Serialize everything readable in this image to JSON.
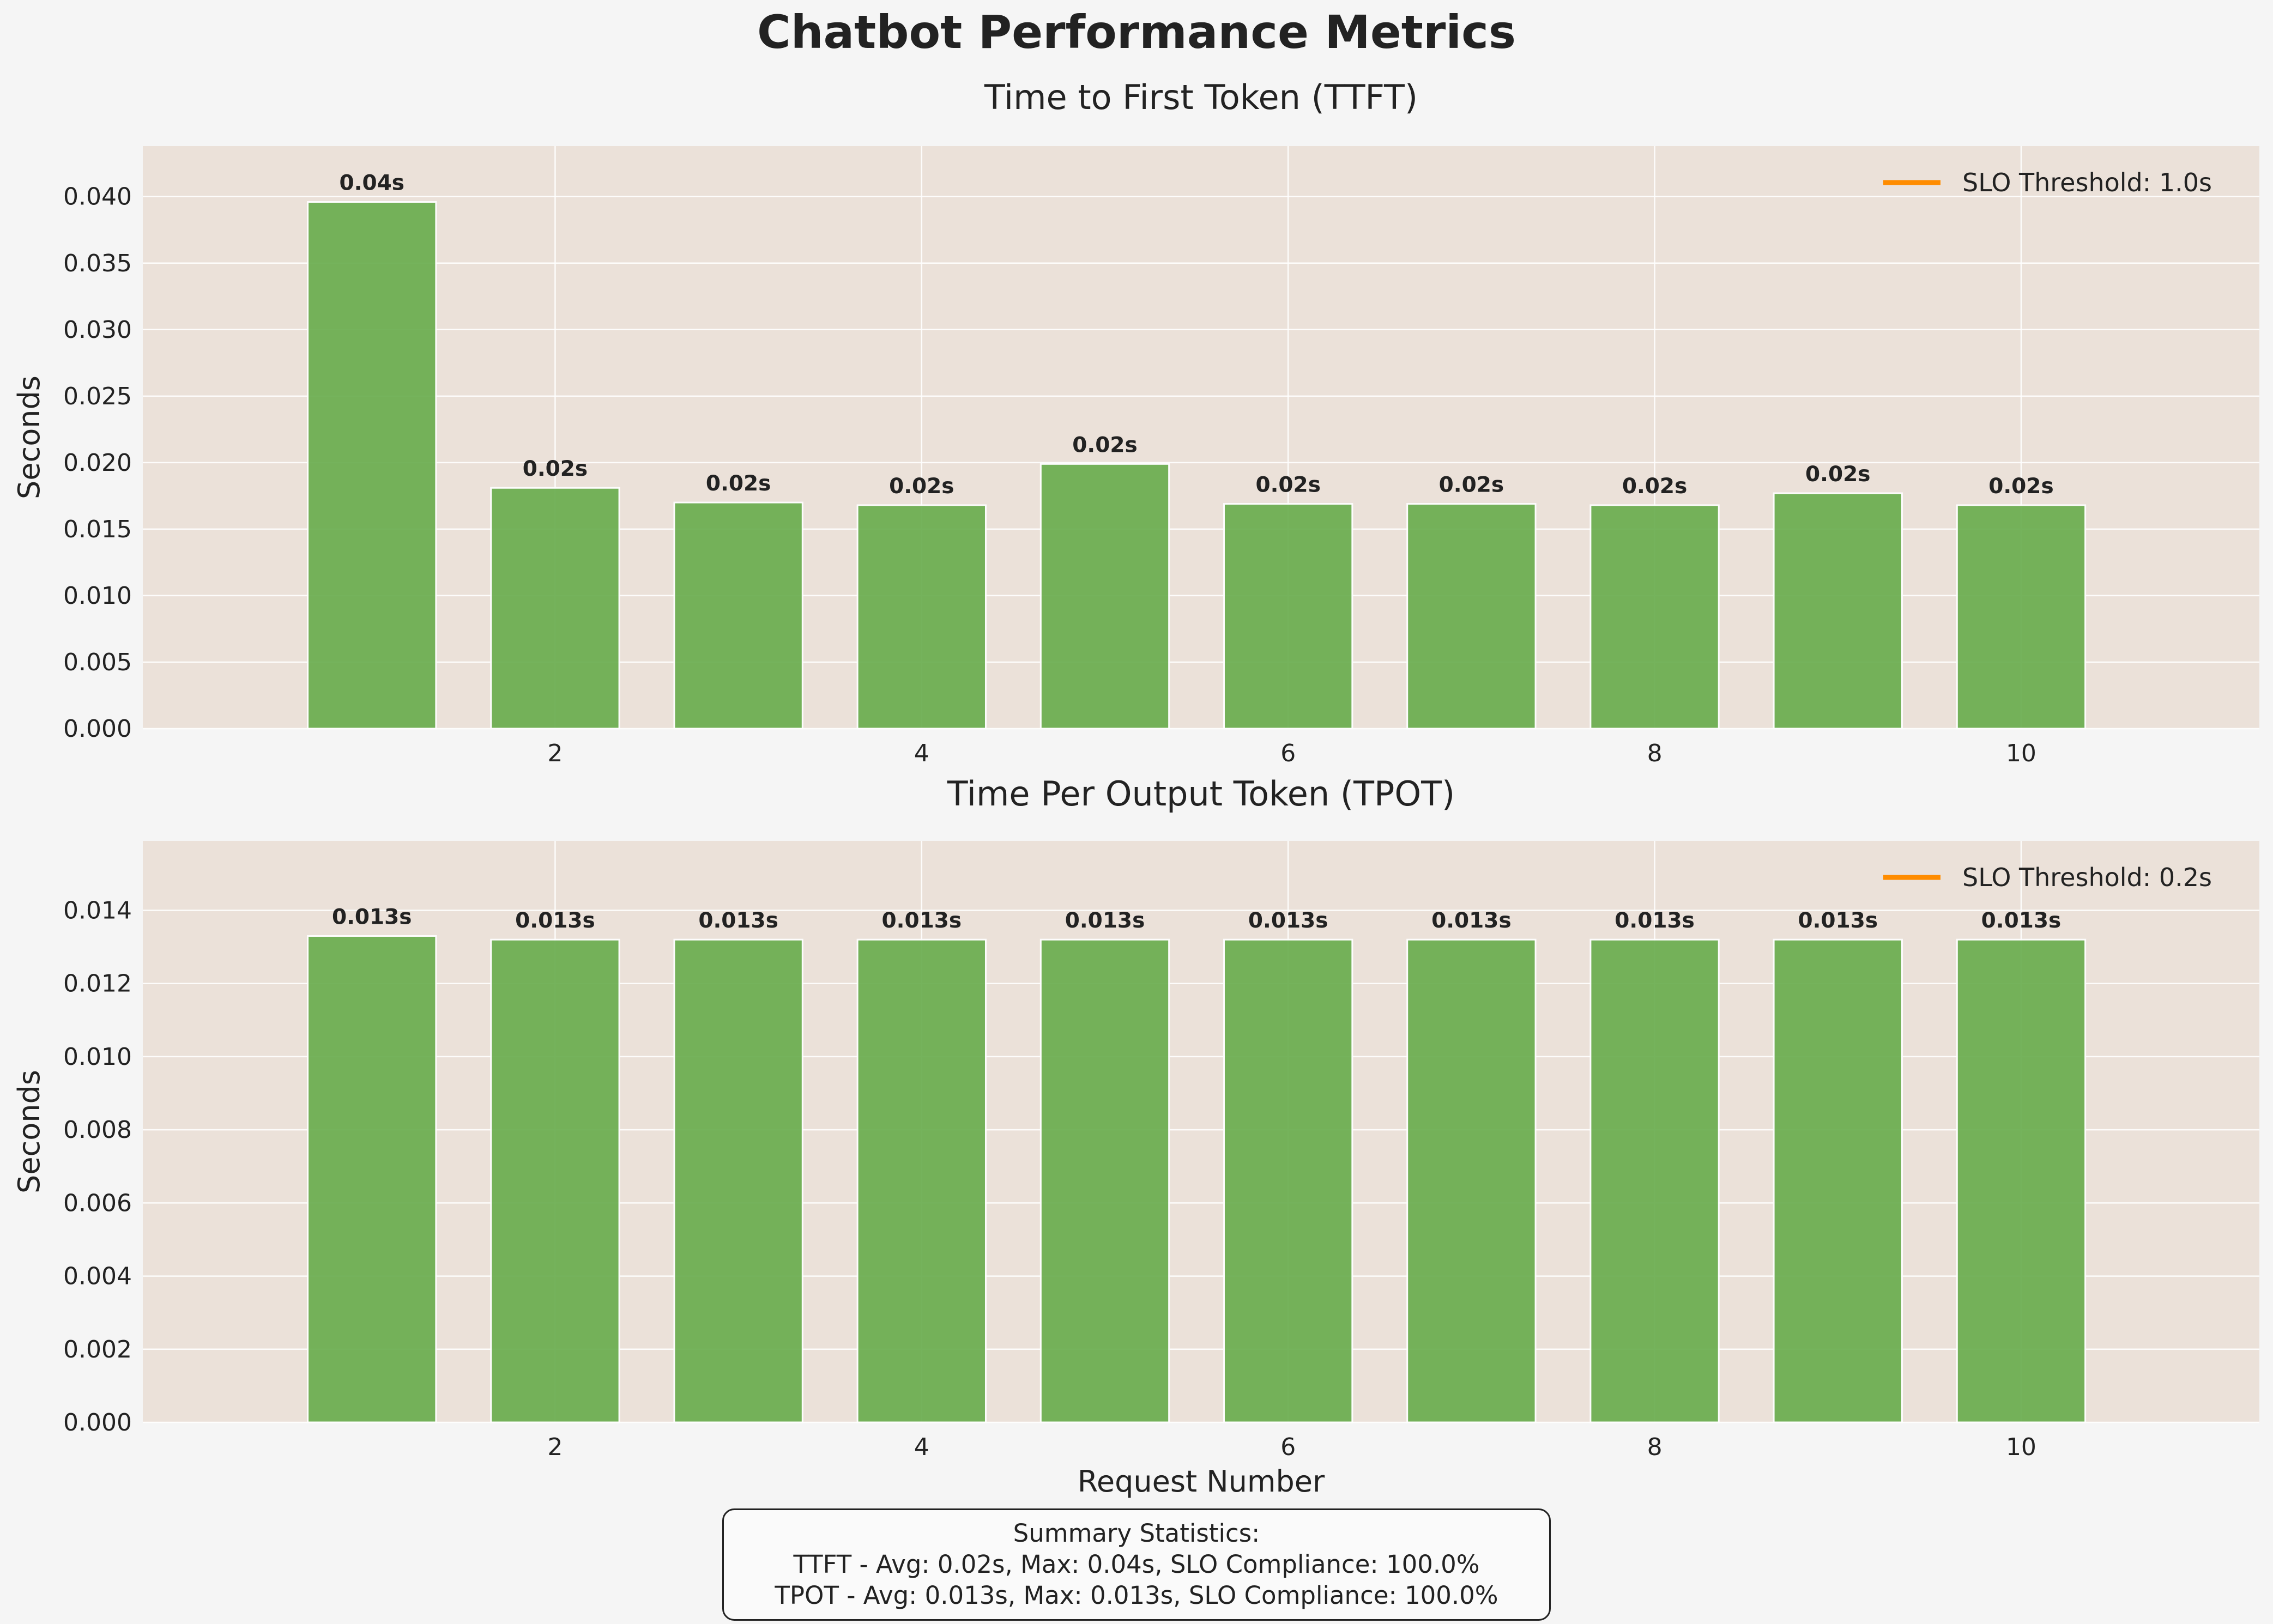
{
  "page": {
    "title": "Chatbot Performance Metrics"
  },
  "colors": {
    "background": "#f5f5f5",
    "plot_background": "#ebe1d9",
    "bar": "#6aad4f",
    "threshold_line": "#ff8c00",
    "text": "#222222",
    "grid": "#ffffff"
  },
  "chart_data": [
    {
      "type": "bar",
      "title": "Time to First Token (TTFT)",
      "xlabel": "",
      "ylabel": "Seconds",
      "x": [
        1,
        2,
        3,
        4,
        5,
        6,
        7,
        8,
        9,
        10
      ],
      "xticks": [
        "2",
        "4",
        "6",
        "8",
        "10"
      ],
      "xtick_values": [
        2,
        4,
        6,
        8,
        10
      ],
      "values": [
        0.0396,
        0.0181,
        0.017,
        0.0168,
        0.0199,
        0.0169,
        0.0169,
        0.0168,
        0.0177,
        0.0168
      ],
      "value_labels": [
        "0.04s",
        "0.02s",
        "0.02s",
        "0.02s",
        "0.02s",
        "0.02s",
        "0.02s",
        "0.02s",
        "0.02s",
        "0.02s"
      ],
      "ylim": [
        0,
        0.0438
      ],
      "xlim": [
        -0.25,
        11.3
      ],
      "yticks": [
        "0.000",
        "0.005",
        "0.010",
        "0.015",
        "0.020",
        "0.025",
        "0.030",
        "0.035",
        "0.040"
      ],
      "ytick_values": [
        0,
        0.005,
        0.01,
        0.015,
        0.02,
        0.025,
        0.03,
        0.035,
        0.04
      ],
      "threshold": 1.0,
      "legend": [
        "SLO Threshold: 1.0s"
      ],
      "legend_position": "upper right",
      "grid": true
    },
    {
      "type": "bar",
      "title": "Time Per Output Token (TPOT)",
      "xlabel": "Request Number",
      "ylabel": "Seconds",
      "x": [
        1,
        2,
        3,
        4,
        5,
        6,
        7,
        8,
        9,
        10
      ],
      "xticks": [
        "2",
        "4",
        "6",
        "8",
        "10"
      ],
      "xtick_values": [
        2,
        4,
        6,
        8,
        10
      ],
      "values": [
        0.0133,
        0.0132,
        0.0132,
        0.0132,
        0.0132,
        0.0132,
        0.0132,
        0.0132,
        0.0132,
        0.0132
      ],
      "value_labels": [
        "0.013s",
        "0.013s",
        "0.013s",
        "0.013s",
        "0.013s",
        "0.013s",
        "0.013s",
        "0.013s",
        "0.013s",
        "0.013s"
      ],
      "ylim": [
        0,
        0.0159
      ],
      "xlim": [
        -0.25,
        11.3
      ],
      "yticks": [
        "0.000",
        "0.002",
        "0.004",
        "0.006",
        "0.008",
        "0.010",
        "0.012",
        "0.014"
      ],
      "ytick_values": [
        0,
        0.002,
        0.004,
        0.006,
        0.008,
        0.01,
        0.012,
        0.014
      ],
      "threshold": 0.2,
      "legend": [
        "SLO Threshold: 0.2s"
      ],
      "legend_position": "upper right",
      "grid": true
    }
  ],
  "summary": {
    "heading": "Summary Statistics:",
    "ttft_line": "TTFT - Avg: 0.02s, Max: 0.04s, SLO Compliance: 100.0%",
    "tpot_line": "TPOT - Avg: 0.013s, Max: 0.013s, SLO Compliance: 100.0%"
  }
}
